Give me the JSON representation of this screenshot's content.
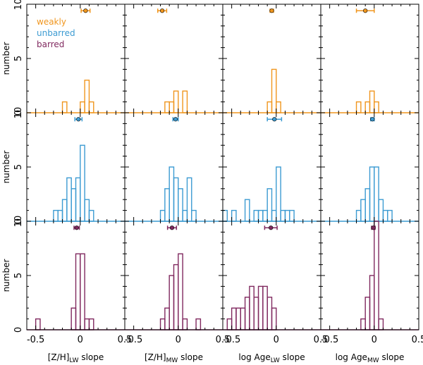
{
  "chart_data": {
    "type": "histogram-grid",
    "ylabel": "number",
    "xlim": [
      -0.6,
      0.5
    ],
    "ylim": [
      0,
      10
    ],
    "x_ticks": [
      "-0.5",
      "0",
      "0.5"
    ],
    "y_ticks": [
      "0",
      "5",
      "10"
    ],
    "bin_width": 0.05,
    "columns": [
      {
        "xlabel_main": "[Z/H]",
        "xlabel_sub": "LW",
        "xlabel_tail": " slope"
      },
      {
        "xlabel_main": "[Z/H]",
        "xlabel_sub": "MW",
        "xlabel_tail": " slope"
      },
      {
        "xlabel_main": "log Age",
        "xlabel_sub": "LW",
        "xlabel_tail": " slope"
      },
      {
        "xlabel_main": "log Age",
        "xlabel_sub": "MW",
        "xlabel_tail": " slope"
      }
    ],
    "groups": [
      {
        "name": "weakly",
        "color": "#f0961e",
        "panels": [
          {
            "bins": [
              [
                -0.2,
                1
              ],
              [
                0.0,
                1
              ],
              [
                0.05,
                3
              ],
              [
                0.1,
                1
              ]
            ],
            "mean": 0.06,
            "err": 0.05
          },
          {
            "bins": [
              [
                -0.15,
                1
              ],
              [
                -0.1,
                1
              ],
              [
                -0.05,
                2
              ],
              [
                0.05,
                2
              ]
            ],
            "mean": -0.18,
            "err": 0.05
          },
          {
            "bins": [
              [
                -0.1,
                1
              ],
              [
                -0.05,
                4
              ],
              [
                0.0,
                1
              ]
            ],
            "mean": -0.05,
            "err": 0.02
          },
          {
            "bins": [
              [
                -0.2,
                1
              ],
              [
                -0.1,
                1
              ],
              [
                -0.05,
                2
              ],
              [
                0.0,
                1
              ]
            ],
            "mean": -0.1,
            "err": 0.1
          }
        ]
      },
      {
        "name": "unbarred",
        "color": "#3c9bd2",
        "panels": [
          {
            "bins": [
              [
                -0.3,
                1
              ],
              [
                -0.25,
                1
              ],
              [
                -0.2,
                2
              ],
              [
                -0.15,
                4
              ],
              [
                -0.1,
                3
              ],
              [
                -0.05,
                4
              ],
              [
                0.0,
                7
              ],
              [
                0.05,
                2
              ],
              [
                0.1,
                1
              ]
            ],
            "mean": -0.02,
            "err": 0.04
          },
          {
            "bins": [
              [
                -0.2,
                1
              ],
              [
                -0.15,
                3
              ],
              [
                -0.1,
                5
              ],
              [
                -0.05,
                4
              ],
              [
                0.0,
                3
              ],
              [
                0.05,
                1
              ],
              [
                0.1,
                4
              ],
              [
                0.15,
                1
              ]
            ],
            "mean": -0.03,
            "err": 0.03
          },
          {
            "bins": [
              [
                -0.6,
                1
              ],
              [
                -0.5,
                1
              ],
              [
                -0.35,
                2
              ],
              [
                -0.25,
                1
              ],
              [
                -0.2,
                1
              ],
              [
                -0.15,
                1
              ],
              [
                -0.1,
                3
              ],
              [
                -0.05,
                1
              ],
              [
                0.0,
                5
              ],
              [
                0.05,
                1
              ],
              [
                0.1,
                1
              ],
              [
                0.15,
                1
              ]
            ],
            "mean": -0.02,
            "err": 0.08
          },
          {
            "bins": [
              [
                -0.2,
                1
              ],
              [
                -0.15,
                2
              ],
              [
                -0.1,
                3
              ],
              [
                -0.05,
                5
              ],
              [
                0.0,
                5
              ],
              [
                0.05,
                2
              ],
              [
                0.1,
                1
              ],
              [
                0.15,
                1
              ]
            ],
            "mean": -0.02,
            "err": 0.02
          }
        ]
      },
      {
        "name": "barred",
        "color": "#80295f",
        "panels": [
          {
            "bins": [
              [
                -0.5,
                1
              ],
              [
                -0.1,
                2
              ],
              [
                -0.05,
                7
              ],
              [
                0.0,
                7
              ],
              [
                0.05,
                1
              ],
              [
                0.1,
                1
              ]
            ],
            "mean": -0.04,
            "err": 0.03
          },
          {
            "bins": [
              [
                -0.2,
                1
              ],
              [
                -0.15,
                2
              ],
              [
                -0.1,
                5
              ],
              [
                -0.05,
                6
              ],
              [
                0.0,
                7
              ],
              [
                0.05,
                1
              ],
              [
                0.2,
                1
              ]
            ],
            "mean": -0.07,
            "err": 0.05
          },
          {
            "bins": [
              [
                -0.55,
                1
              ],
              [
                -0.5,
                2
              ],
              [
                -0.45,
                2
              ],
              [
                -0.4,
                2
              ],
              [
                -0.35,
                3
              ],
              [
                -0.3,
                4
              ],
              [
                -0.25,
                3
              ],
              [
                -0.2,
                4
              ],
              [
                -0.15,
                4
              ],
              [
                -0.1,
                3
              ],
              [
                -0.05,
                2
              ]
            ],
            "mean": -0.06,
            "err": 0.07
          },
          {
            "bins": [
              [
                -0.15,
                1
              ],
              [
                -0.1,
                3
              ],
              [
                -0.05,
                5
              ],
              [
                0.0,
                10
              ],
              [
                0.05,
                1
              ]
            ],
            "mean": -0.01,
            "err": 0.02
          }
        ]
      }
    ]
  }
}
